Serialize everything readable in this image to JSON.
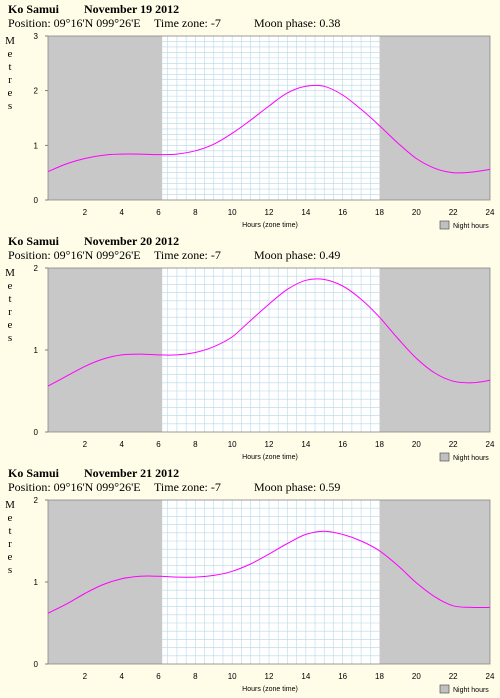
{
  "chart_data": [
    {
      "type": "line",
      "title": {
        "place": "Ko Samui",
        "date": "November 19 2012"
      },
      "position_label": "Position: 09°16'N 099°26'E",
      "timezone_label": "Time zone: -7",
      "moon_label": "Moon phase: 0.38",
      "ylabel": "Metres",
      "xlabel": "Hours (zone time)",
      "legend": "Night hours",
      "ylim": [
        0,
        3
      ],
      "yticks": [
        "0",
        "1",
        "2",
        "3"
      ],
      "xlim": [
        0,
        24
      ],
      "xticks": [
        "2",
        "4",
        "6",
        "8",
        "10",
        "12",
        "14",
        "16",
        "18",
        "20",
        "22",
        "24"
      ],
      "night": [
        [
          0,
          6.2
        ],
        [
          18,
          24
        ]
      ],
      "x": [
        0,
        1,
        2,
        3,
        4,
        5,
        6,
        7,
        8,
        9,
        10,
        11,
        12,
        13,
        14,
        15,
        16,
        17,
        18,
        19,
        20,
        21,
        22,
        23,
        24
      ],
      "values": [
        0.52,
        0.66,
        0.76,
        0.82,
        0.84,
        0.84,
        0.83,
        0.84,
        0.9,
        1.02,
        1.22,
        1.46,
        1.72,
        1.96,
        2.08,
        2.08,
        1.92,
        1.66,
        1.36,
        1.04,
        0.76,
        0.58,
        0.5,
        0.51,
        0.56
      ]
    },
    {
      "type": "line",
      "title": {
        "place": "Ko Samui",
        "date": "November 20 2012"
      },
      "position_label": "Position: 09°16'N 099°26'E",
      "timezone_label": "Time zone: -7",
      "moon_label": "Moon phase: 0.49",
      "ylabel": "Metres",
      "xlabel": "Hours (zone time)",
      "legend": "Night hours",
      "ylim": [
        0,
        2
      ],
      "yticks": [
        "0",
        "1",
        "2"
      ],
      "xlim": [
        0,
        24
      ],
      "xticks": [
        "2",
        "4",
        "6",
        "8",
        "10",
        "12",
        "14",
        "16",
        "18",
        "20",
        "22",
        "24"
      ],
      "night": [
        [
          0,
          6.2
        ],
        [
          18,
          24
        ]
      ],
      "x": [
        0,
        1,
        2,
        3,
        4,
        5,
        6,
        7,
        8,
        9,
        10,
        11,
        12,
        13,
        14,
        15,
        16,
        17,
        18,
        19,
        20,
        21,
        22,
        23,
        24
      ],
      "values": [
        0.56,
        0.68,
        0.8,
        0.89,
        0.94,
        0.95,
        0.94,
        0.94,
        0.97,
        1.04,
        1.16,
        1.36,
        1.56,
        1.74,
        1.85,
        1.86,
        1.78,
        1.62,
        1.4,
        1.14,
        0.9,
        0.72,
        0.62,
        0.6,
        0.63
      ]
    },
    {
      "type": "line",
      "title": {
        "place": "Ko Samui",
        "date": "November 21 2012"
      },
      "position_label": "Position: 09°16'N 099°26'E",
      "timezone_label": "Time zone: -7",
      "moon_label": "Moon phase: 0.59",
      "ylabel": "Metres",
      "xlabel": "Hours (zone time)",
      "legend": "Night hours",
      "ylim": [
        0,
        2
      ],
      "yticks": [
        "0",
        "1",
        "2"
      ],
      "xlim": [
        0,
        24
      ],
      "xticks": [
        "2",
        "4",
        "6",
        "8",
        "10",
        "12",
        "14",
        "16",
        "18",
        "20",
        "22",
        "24"
      ],
      "night": [
        [
          0,
          6.2
        ],
        [
          18,
          24
        ]
      ],
      "x": [
        0,
        1,
        2,
        3,
        4,
        5,
        6,
        7,
        8,
        9,
        10,
        11,
        12,
        13,
        14,
        15,
        16,
        17,
        18,
        19,
        20,
        21,
        22,
        23,
        24
      ],
      "values": [
        0.62,
        0.73,
        0.86,
        0.97,
        1.04,
        1.07,
        1.07,
        1.06,
        1.06,
        1.08,
        1.13,
        1.22,
        1.34,
        1.47,
        1.58,
        1.62,
        1.58,
        1.5,
        1.38,
        1.2,
        0.99,
        0.82,
        0.71,
        0.69,
        0.69
      ]
    }
  ]
}
